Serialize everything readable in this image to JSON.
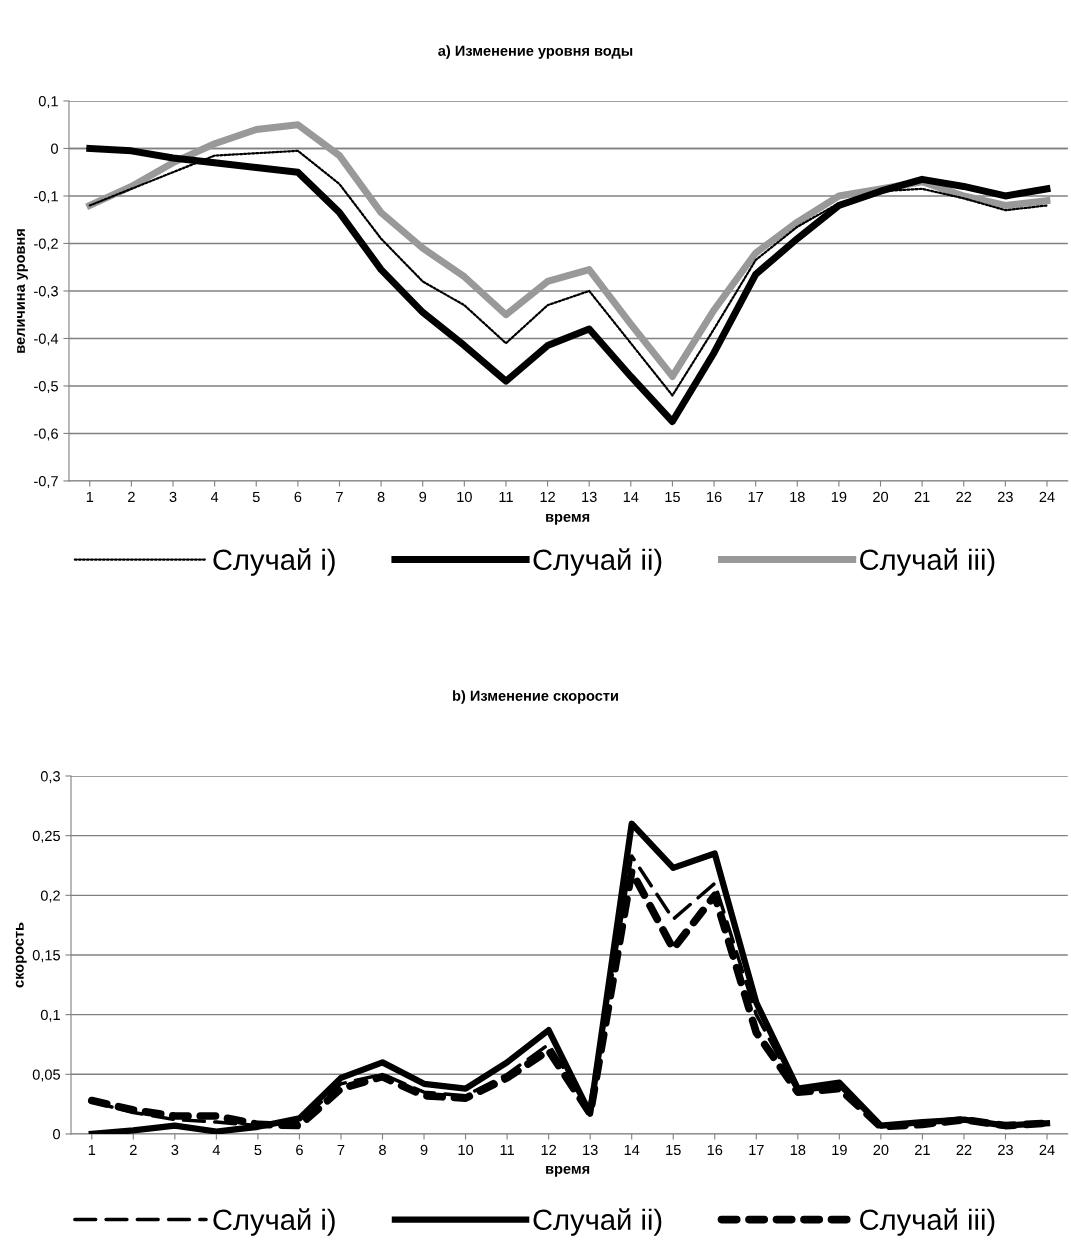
{
  "chart_data": [
    {
      "type": "line",
      "title": "а) Изменение уровня воды",
      "xlabel": "время",
      "ylabel": "величина уровня",
      "categories": [
        "1",
        "2",
        "3",
        "4",
        "5",
        "6",
        "7",
        "8",
        "9",
        "10",
        "11",
        "12",
        "13",
        "14",
        "15",
        "16",
        "17",
        "18",
        "19",
        "20",
        "21",
        "22",
        "23",
        "24"
      ],
      "series": [
        {
          "name": "Случай i)",
          "color": "#000000",
          "line_style": "dotted",
          "values": [
            -0.12,
            -0.085,
            -0.05,
            -0.015,
            -0.01,
            -0.005,
            -0.075,
            -0.19,
            -0.28,
            -0.33,
            -0.41,
            -0.33,
            -0.3,
            -0.41,
            -0.52,
            -0.38,
            -0.235,
            -0.165,
            -0.115,
            -0.09,
            -0.085,
            -0.105,
            -0.13,
            -0.12
          ]
        },
        {
          "name": "Случай ii)",
          "color": "#000000",
          "line_style": "solid",
          "values": [
            0,
            -0.005,
            -0.02,
            -0.03,
            -0.04,
            -0.05,
            -0.135,
            -0.255,
            -0.345,
            -0.415,
            -0.49,
            -0.415,
            -0.38,
            -0.48,
            -0.575,
            -0.43,
            -0.265,
            -0.19,
            -0.12,
            -0.09,
            -0.065,
            -0.08,
            -0.1,
            -0.085
          ]
        },
        {
          "name": "Случай iii)",
          "color": "#999999",
          "line_style": "solid",
          "values": [
            -0.12,
            -0.08,
            -0.03,
            0.01,
            0.04,
            0.05,
            -0.015,
            -0.135,
            -0.21,
            -0.27,
            -0.35,
            -0.28,
            -0.255,
            -0.37,
            -0.48,
            -0.34,
            -0.22,
            -0.155,
            -0.1,
            -0.085,
            -0.07,
            -0.1,
            -0.12,
            -0.11
          ]
        }
      ],
      "ylim": [
        -0.7,
        0.1
      ],
      "yticks": [
        {
          "value": 0.1,
          "label": "0,1"
        },
        0,
        {
          "value": -0.1,
          "label": "-0,1"
        },
        {
          "value": -0.2,
          "label": "-0,2"
        },
        {
          "value": -0.3,
          "label": "-0,3"
        },
        {
          "value": -0.4,
          "label": "-0,4"
        },
        {
          "value": -0.5,
          "label": "-0,5"
        },
        {
          "value": -0.6,
          "label": "-0,6"
        },
        {
          "value": -0.7,
          "label": "-0,7"
        }
      ],
      "grid": "y",
      "legend": "bottom",
      "marker": "none"
    },
    {
      "type": "line",
      "title": "b) Изменение скорости",
      "xlabel": "время",
      "ylabel": "скорость",
      "categories": [
        "1",
        "2",
        "3",
        "4",
        "5",
        "6",
        "7",
        "8",
        "9",
        "10",
        "11",
        "12",
        "13",
        "14",
        "15",
        "16",
        "17",
        "18",
        "19",
        "20",
        "21",
        "22",
        "23",
        "24"
      ],
      "series": [
        {
          "name": "Случай i)",
          "color": "#000000",
          "line_style": "dashed",
          "values": [
            0.027,
            0.018,
            0.012,
            0.01,
            0.007,
            0.01,
            0.042,
            0.05,
            0.035,
            0.032,
            0.05,
            0.075,
            0.02,
            0.233,
            0.18,
            0.21,
            0.1,
            0.035,
            0.04,
            0.006,
            0.009,
            0.012,
            0.007,
            0.009
          ]
        },
        {
          "name": "Случай ii)",
          "color": "#000000",
          "line_style": "solid",
          "values": [
            0,
            0.003,
            0.007,
            0.002,
            0.006,
            0.013,
            0.047,
            0.06,
            0.042,
            0.038,
            0.06,
            0.087,
            0.017,
            0.26,
            0.223,
            0.235,
            0.11,
            0.038,
            0.043,
            0.007,
            0.01,
            0.012,
            0.007,
            0.009
          ]
        },
        {
          "name": "Случай iii)",
          "color": "#000000",
          "line_style": "dashed",
          "values": [
            0.028,
            0.02,
            0.015,
            0.015,
            0.008,
            0.007,
            0.038,
            0.048,
            0.032,
            0.03,
            0.047,
            0.07,
            0.017,
            0.22,
            0.155,
            0.2,
            0.085,
            0.035,
            0.038,
            0.006,
            0.008,
            0.012,
            0.007,
            0.009
          ]
        }
      ],
      "ylim": [
        0,
        0.3
      ],
      "yticks": [
        0,
        {
          "value": 0.05,
          "label": "0,05"
        },
        {
          "value": 0.1,
          "label": "0,1"
        },
        {
          "value": 0.15,
          "label": "0,15"
        },
        {
          "value": 0.2,
          "label": "0,2"
        },
        {
          "value": 0.25,
          "label": "0,25"
        },
        {
          "value": 0.3,
          "label": "0,3"
        }
      ],
      "grid": "y",
      "legend": "bottom",
      "marker": "none"
    }
  ]
}
